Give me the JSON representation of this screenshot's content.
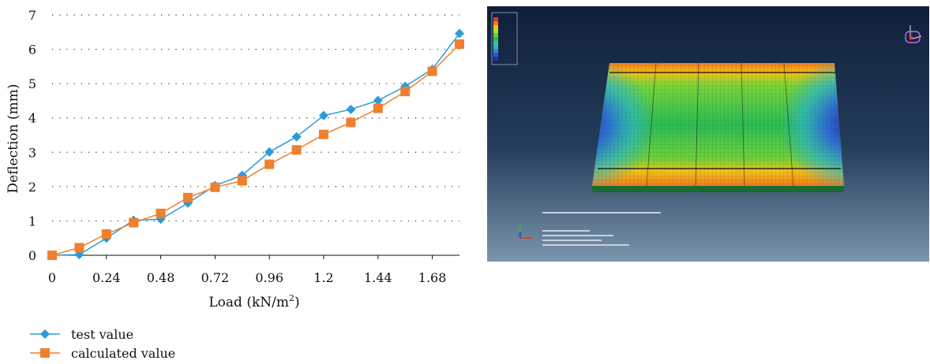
{
  "chart_data": {
    "type": "line",
    "xlabel": "Load (kN/m",
    "xlabel_sup": "2",
    "xlabel_end": ")",
    "ylabel": "Deflection (mm)",
    "xlim": [
      0,
      1.8
    ],
    "ylim": [
      0,
      7
    ],
    "x_ticks": [
      "0",
      "0.24",
      "0.48",
      "0.72",
      "0.96",
      "1.2",
      "1.44",
      "1.68"
    ],
    "y_ticks": [
      "0",
      "1",
      "2",
      "3",
      "4",
      "5",
      "6",
      "7"
    ],
    "grid": "horizontal dotted",
    "legend_position": "bottom-left",
    "series": [
      {
        "name": "test value",
        "color": "#2e9bd6",
        "marker": "diamond",
        "x": [
          0,
          0.12,
          0.24,
          0.36,
          0.48,
          0.6,
          0.72,
          0.84,
          0.96,
          1.08,
          1.2,
          1.32,
          1.44,
          1.56,
          1.68,
          1.8
        ],
        "y": [
          0,
          0.02,
          0.5,
          1.02,
          1.05,
          1.52,
          2.03,
          2.33,
          3.01,
          3.45,
          4.07,
          4.25,
          4.51,
          4.92,
          5.42,
          6.46
        ]
      },
      {
        "name": "calculated value",
        "color": "#f07f2e",
        "marker": "square",
        "x": [
          0,
          0.12,
          0.24,
          0.36,
          0.48,
          0.6,
          0.72,
          0.84,
          0.96,
          1.08,
          1.2,
          1.32,
          1.44,
          1.56,
          1.68,
          1.8
        ],
        "y": [
          0,
          0.22,
          0.62,
          0.95,
          1.22,
          1.68,
          1.98,
          2.17,
          2.65,
          3.07,
          3.52,
          3.87,
          4.28,
          4.77,
          5.36,
          6.15
        ]
      }
    ]
  },
  "simulation": {
    "description_icons": [
      "contour-legend-icon",
      "view-triad-icon",
      "axis-triad-icon"
    ]
  }
}
